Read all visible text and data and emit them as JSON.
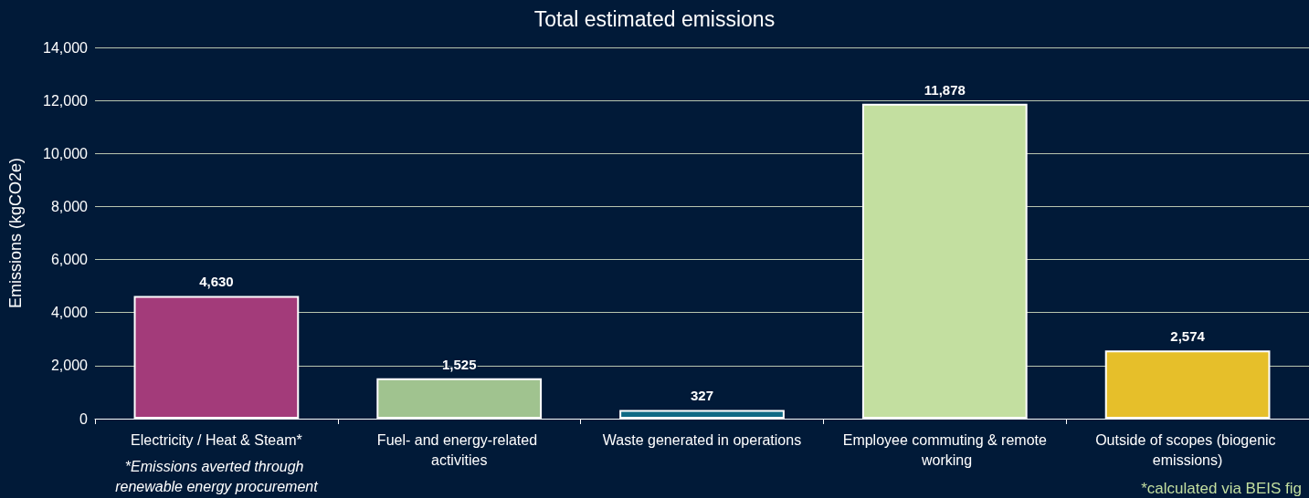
{
  "chart_data": {
    "type": "bar",
    "title": "Total estimated emissions",
    "ylabel": "Emissions (kgCO2e)",
    "categories": [
      "Electricity / Heat & Steam*",
      "Fuel- and energy-related activities",
      "Waste generated in operations",
      "Employee commuting & remote working",
      "Outside of scopes (biogenic emissions)"
    ],
    "values": [
      4630,
      1525,
      327,
      11878,
      2574
    ],
    "value_labels": [
      "4,630",
      "1,525",
      "327",
      "11,878",
      "2,574"
    ],
    "colors": [
      "#a33b7a",
      "#a0c38f",
      "#0e6a85",
      "#c3dfa0",
      "#e6bf2a"
    ],
    "ylim": [
      0,
      14000
    ],
    "yticks": [
      0,
      {
        "value": 2000,
        "label": "2,000"
      },
      {
        "value": 4000,
        "label": "4,000"
      },
      {
        "value": 6000,
        "label": "6,000"
      },
      {
        "value": 8000,
        "label": "8,000"
      },
      {
        "value": 10000,
        "label": "10,000"
      },
      {
        "value": 12000,
        "label": "12,000"
      },
      {
        "value": 14000,
        "label": "14,000"
      }
    ],
    "grid": "y",
    "annotations": [
      "*Emissions averted through renewable energy procurement",
      "*calculated via BEIS fig"
    ]
  }
}
